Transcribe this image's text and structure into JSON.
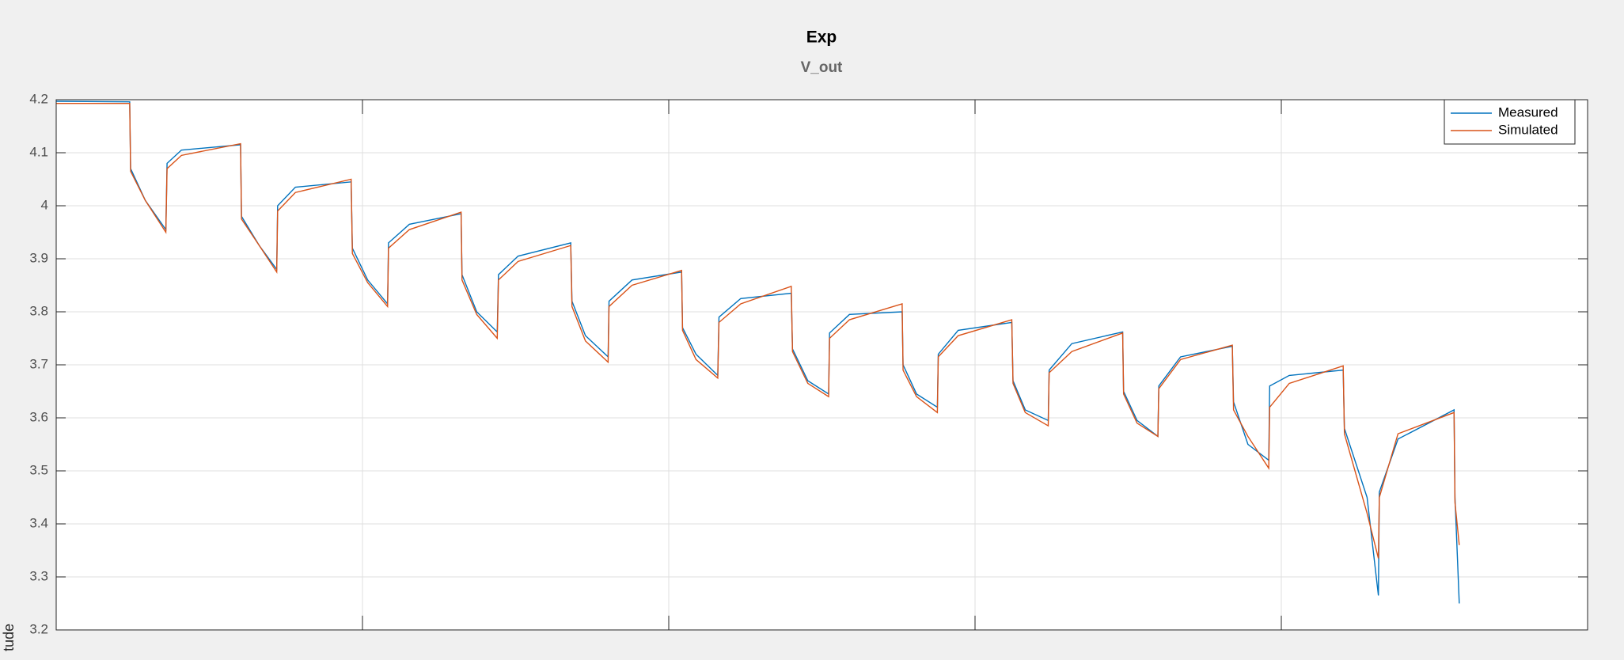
{
  "chart_data": {
    "type": "line",
    "title": "Exp",
    "subtitle": "V_out",
    "ylabel": "tude",
    "x": [
      0,
      0.24,
      0.243,
      0.291,
      0.358,
      0.362,
      0.409,
      0.602,
      0.605,
      0.663,
      0.72,
      0.723,
      0.781,
      0.963,
      0.967,
      1.017,
      1.082,
      1.085,
      1.153,
      1.322,
      1.325,
      1.373,
      1.44,
      1.444,
      1.508,
      1.68,
      1.684,
      1.728,
      1.802,
      1.805,
      1.88,
      2.042,
      2.045,
      2.089,
      2.16,
      2.164,
      2.235,
      2.4,
      2.404,
      2.454,
      2.522,
      2.525,
      2.59,
      2.762,
      2.765,
      2.809,
      2.877,
      2.88,
      2.945,
      3.12,
      3.124,
      3.164,
      3.239,
      3.242,
      3.316,
      3.482,
      3.485,
      3.529,
      3.597,
      3.6,
      3.671,
      3.84,
      3.844,
      3.891,
      3.959,
      3.962,
      4.026,
      4.202,
      4.206,
      4.28,
      4.317,
      4.32,
      4.381,
      4.564,
      4.567,
      4.581
    ],
    "series": [
      {
        "name": "Measured",
        "color": "#0072bd",
        "values": [
          4.197,
          4.196,
          4.07,
          4.01,
          3.955,
          4.08,
          4.105,
          4.115,
          3.98,
          3.925,
          3.88,
          4.0,
          4.035,
          4.045,
          3.92,
          3.86,
          3.815,
          3.93,
          3.965,
          3.985,
          3.87,
          3.8,
          3.762,
          3.87,
          3.905,
          3.93,
          3.82,
          3.755,
          3.715,
          3.82,
          3.86,
          3.875,
          3.77,
          3.72,
          3.68,
          3.79,
          3.825,
          3.835,
          3.73,
          3.67,
          3.645,
          3.76,
          3.795,
          3.8,
          3.7,
          3.645,
          3.62,
          3.72,
          3.765,
          3.78,
          3.67,
          3.615,
          3.595,
          3.69,
          3.74,
          3.762,
          3.65,
          3.595,
          3.565,
          3.66,
          3.715,
          3.735,
          3.63,
          3.55,
          3.52,
          3.66,
          3.68,
          3.69,
          3.58,
          3.45,
          3.265,
          3.46,
          3.56,
          3.615,
          3.45,
          3.25
        ]
      },
      {
        "name": "Simulated",
        "color": "#d95319",
        "values": [
          4.193,
          4.193,
          4.065,
          4.01,
          3.95,
          4.07,
          4.095,
          4.117,
          3.975,
          3.925,
          3.875,
          3.99,
          4.025,
          4.05,
          3.91,
          3.855,
          3.81,
          3.92,
          3.955,
          3.988,
          3.86,
          3.795,
          3.75,
          3.86,
          3.895,
          3.925,
          3.81,
          3.745,
          3.705,
          3.81,
          3.85,
          3.878,
          3.765,
          3.71,
          3.675,
          3.78,
          3.815,
          3.848,
          3.725,
          3.665,
          3.64,
          3.75,
          3.785,
          3.815,
          3.69,
          3.64,
          3.61,
          3.715,
          3.755,
          3.785,
          3.665,
          3.61,
          3.585,
          3.685,
          3.725,
          3.76,
          3.645,
          3.59,
          3.565,
          3.655,
          3.71,
          3.737,
          3.615,
          3.565,
          3.505,
          3.62,
          3.665,
          3.698,
          3.57,
          3.42,
          3.335,
          3.45,
          3.57,
          3.61,
          3.44,
          3.36
        ]
      }
    ],
    "xlim": [
      0,
      5
    ],
    "xticks": [
      0,
      1,
      2,
      3,
      4,
      5
    ],
    "ylim": [
      3.2,
      4.2
    ],
    "yticks": [
      3.2,
      3.3,
      3.4,
      3.5,
      3.6,
      3.7,
      3.8,
      3.9,
      4,
      4.1,
      4.2
    ],
    "grid": true,
    "legend": "northeast"
  }
}
